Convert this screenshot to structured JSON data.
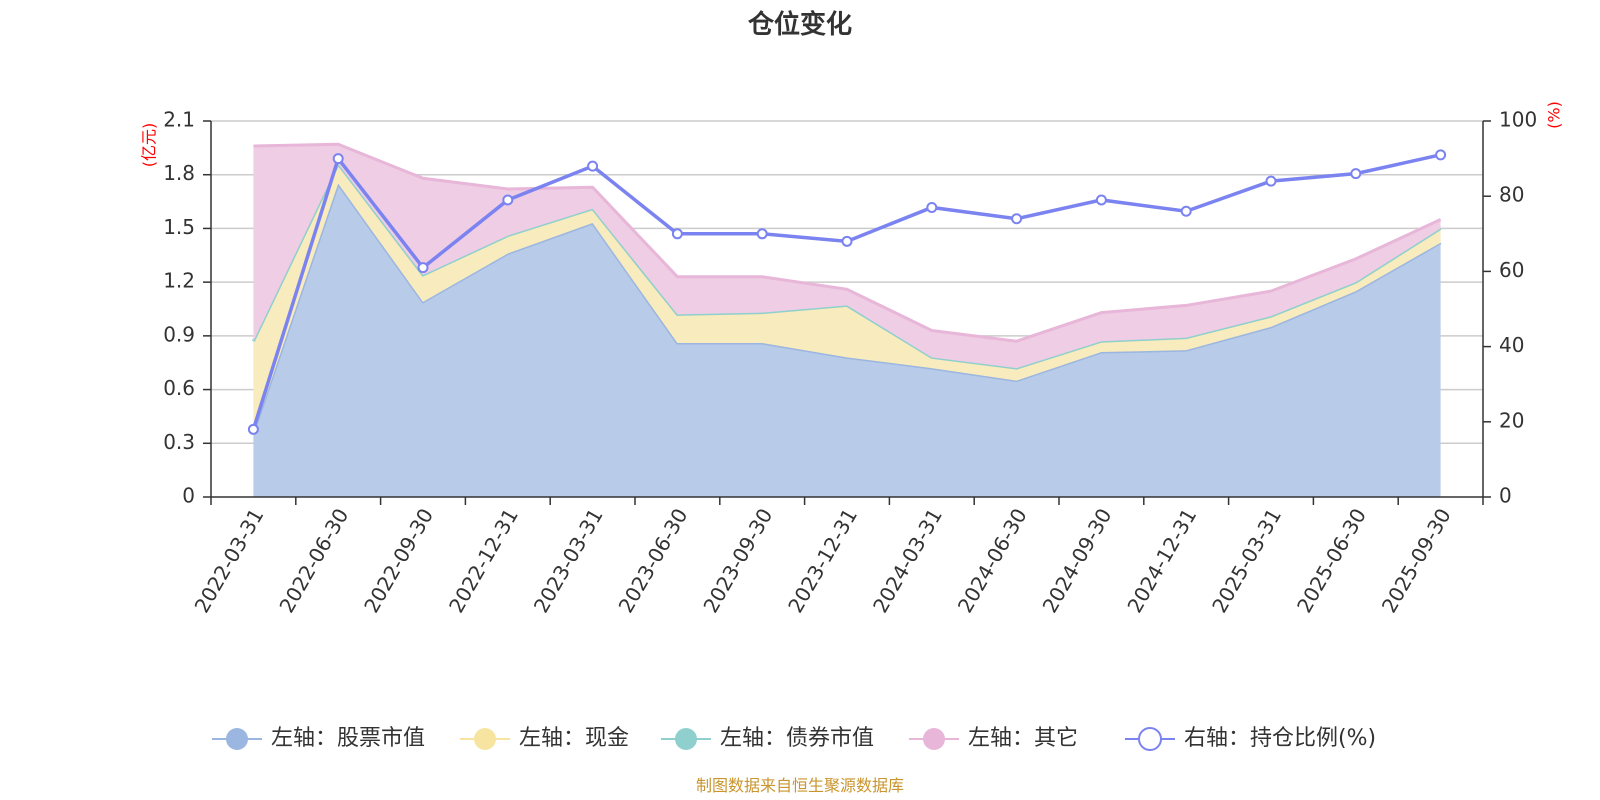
{
  "chart_data": {
    "type": "area",
    "title": "仓位变化",
    "categories": [
      "2022-03-31",
      "2022-06-30",
      "2022-09-30",
      "2022-12-31",
      "2023-03-31",
      "2023-06-30",
      "2023-09-30",
      "2023-12-31",
      "2024-03-31",
      "2024-06-30",
      "2024-09-30",
      "2024-12-31",
      "2025-03-31",
      "2025-06-30",
      "2025-09-30"
    ],
    "left_axis": {
      "unit": "(亿元)",
      "ylim": [
        0,
        2.1
      ],
      "ticks": [
        "0",
        "0.3",
        "0.6",
        "0.9",
        "1.2",
        "1.5",
        "1.8",
        "2.1"
      ]
    },
    "right_axis": {
      "unit": "(%)",
      "ylim": [
        0,
        100
      ],
      "ticks": [
        "0",
        "20",
        "40",
        "60",
        "80",
        "100"
      ]
    },
    "series": [
      {
        "name": "左轴：股票市值",
        "axis": "left",
        "stack": true,
        "color": "#9bb6e0",
        "fill": "#b8cbe9",
        "values": [
          0.36,
          1.75,
          1.09,
          1.36,
          1.53,
          0.86,
          0.86,
          0.78,
          0.72,
          0.65,
          0.81,
          0.82,
          0.95,
          1.15,
          1.42
        ]
      },
      {
        "name": "左轴：现金",
        "axis": "left",
        "stack": true,
        "color": "#f7e4a0",
        "fill": "#f8ebbd",
        "values": [
          0.51,
          0.11,
          0.15,
          0.1,
          0.08,
          0.16,
          0.17,
          0.29,
          0.06,
          0.07,
          0.06,
          0.07,
          0.06,
          0.05,
          0.08
        ]
      },
      {
        "name": "左轴：债券市值",
        "axis": "left",
        "stack": true,
        "color": "#8fd0cf",
        "fill": "#bfe3e3",
        "values": [
          0,
          0,
          0,
          0,
          0,
          0,
          0,
          0,
          0,
          0,
          0,
          0,
          0,
          0,
          0
        ]
      },
      {
        "name": "左轴：其它",
        "axis": "left",
        "stack": true,
        "color": "#e7b6d8",
        "fill": "#efcde4",
        "values": [
          1.09,
          0.11,
          0.54,
          0.26,
          0.12,
          0.21,
          0.2,
          0.09,
          0.15,
          0.15,
          0.16,
          0.18,
          0.14,
          0.13,
          0.05
        ]
      },
      {
        "name": "右轴：持仓比例(%)",
        "axis": "right",
        "type": "line",
        "color": "#7b83f0",
        "values": [
          18,
          90,
          61,
          79,
          88,
          70,
          70,
          68,
          77,
          74,
          79,
          76,
          84,
          86,
          91
        ]
      }
    ],
    "legend_position": "bottom",
    "grid": true
  },
  "source_note": "制图数据来自恒生聚源数据库"
}
